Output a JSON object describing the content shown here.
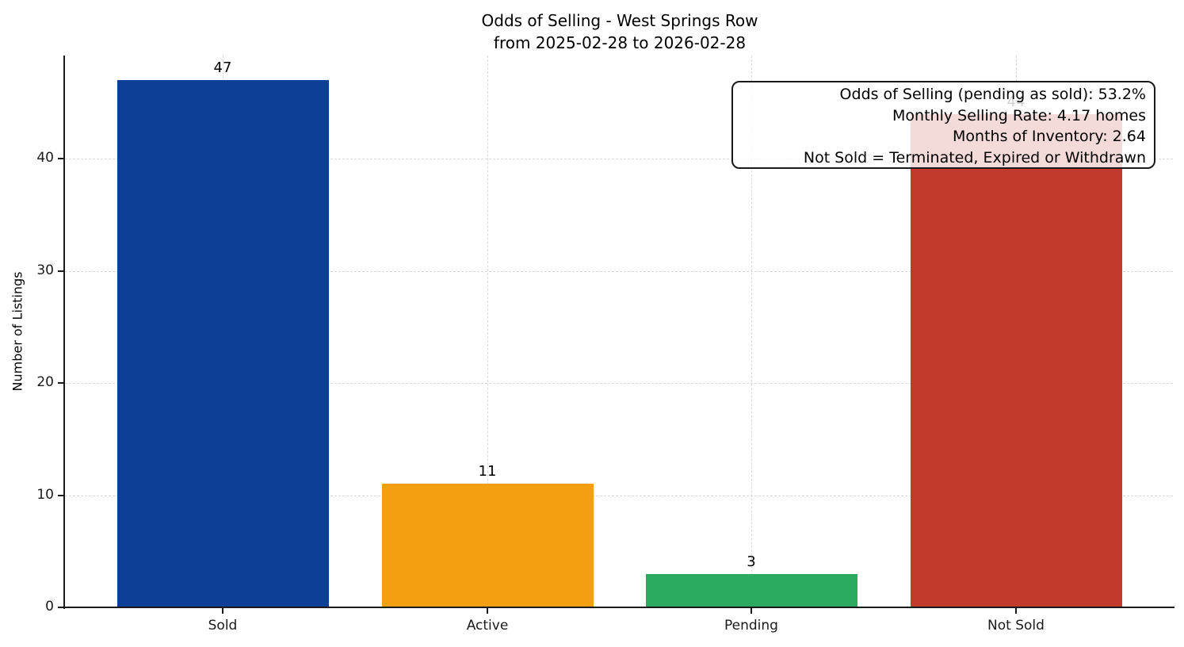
{
  "chart_data": {
    "type": "bar",
    "title": "Odds of Selling - West Springs Row",
    "subtitle": "from 2025-02-28 to 2026-02-28",
    "categories": [
      "Sold",
      "Active",
      "Pending",
      "Not Sold"
    ],
    "values": [
      47,
      11,
      3,
      44
    ],
    "bar_colors": [
      "#0e3f96",
      "#f2a012",
      "#2bab60",
      "#c23a2c"
    ],
    "xlabel": "",
    "ylabel": "Number of Listings",
    "ylim": [
      0,
      49.2
    ],
    "yticks": [
      0,
      10,
      20,
      30,
      40
    ],
    "grid": true,
    "grid_style": "dashed",
    "legend": "none",
    "annotation_box": {
      "position": "top-right",
      "lines": [
        "Odds of Selling (pending as sold): 53.2%",
        "Monthly Selling Rate: 4.17 homes",
        "Months of Inventory: 2.64",
        "Not Sold = Terminated, Expired or Withdrawn"
      ]
    }
  }
}
